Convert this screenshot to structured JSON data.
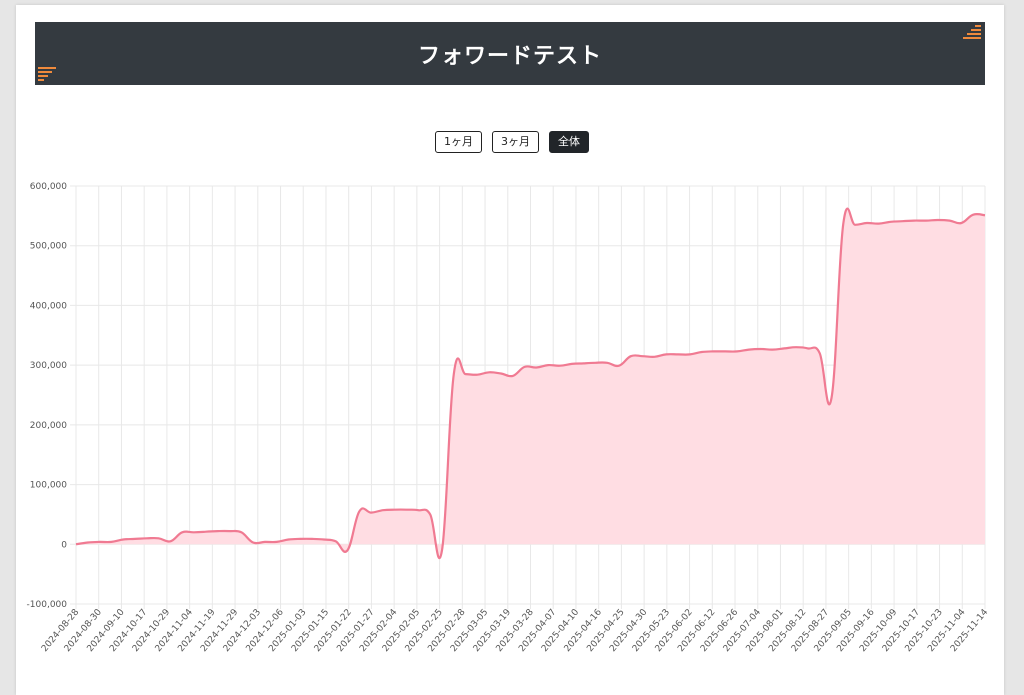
{
  "header": {
    "title": "フォワードテスト"
  },
  "range_buttons": [
    {
      "label": "1ヶ月",
      "active": false
    },
    {
      "label": "3ヶ月",
      "active": false
    },
    {
      "label": "全体",
      "active": true
    }
  ],
  "colors": {
    "line": "#f07a92",
    "fill": "#ffdde3",
    "grid": "#e8e8e8",
    "header_bg": "#343a40",
    "accent": "#f08a3c"
  },
  "chart_data": {
    "type": "area",
    "title": "",
    "xlabel": "",
    "ylabel": "",
    "grid": true,
    "legend": "none",
    "ylim": [
      -100000,
      600000
    ],
    "yticks": [
      "600,000",
      "500,000",
      "400,000",
      "300,000",
      "200,000",
      "100,000",
      "0",
      "-100,000"
    ],
    "ytick_values": [
      600000,
      500000,
      400000,
      300000,
      200000,
      100000,
      0,
      -100000
    ],
    "x_tick_labels": [
      "2024-08-28",
      "2024-08-30",
      "2024-09-10",
      "2024-10-17",
      "2024-10-29",
      "2024-11-04",
      "2024-11-19",
      "2024-11-29",
      "2024-12-03",
      "2024-12-06",
      "2025-01-03",
      "2025-01-15",
      "2025-01-22",
      "2025-01-27",
      "2025-02-04",
      "2025-02-05",
      "2025-02-25",
      "2025-02-28",
      "2025-03-05",
      "2025-03-19",
      "2025-03-28",
      "2025-04-07",
      "2025-04-10",
      "2025-04-16",
      "2025-04-25",
      "2025-04-30",
      "2025-05-23",
      "2025-06-02",
      "2025-06-12",
      "2025-06-26",
      "2025-07-04",
      "2025-08-01",
      "2025-08-12",
      "2025-08-27",
      "2025-09-05",
      "2025-09-16",
      "2025-10-09",
      "2025-10-17",
      "2025-10-23",
      "2025-11-04",
      "2025-11-14"
    ],
    "series": [
      {
        "values": [
          0,
          3000,
          4000,
          4000,
          8000,
          9000,
          10000,
          10000,
          5000,
          20000,
          20000,
          21000,
          22000,
          22000,
          20000,
          3000,
          4000,
          4000,
          8000,
          9000,
          9000,
          8000,
          5000,
          -10000,
          55000,
          53000,
          57000,
          58000,
          58000,
          57000,
          50000,
          -10000,
          285000,
          285000,
          284000,
          288000,
          286000,
          282000,
          297000,
          296000,
          300000,
          299000,
          302000,
          303000,
          304000,
          304000,
          299000,
          315000,
          315000,
          314000,
          318000,
          318000,
          318000,
          322000,
          323000,
          323000,
          323000,
          326000,
          327000,
          326000,
          328000,
          330000,
          328000,
          320000,
          245000,
          537000,
          535000,
          538000,
          537000,
          540000,
          541000,
          542000,
          542000,
          543000,
          542000,
          538000,
          552000,
          551000
        ]
      }
    ]
  }
}
